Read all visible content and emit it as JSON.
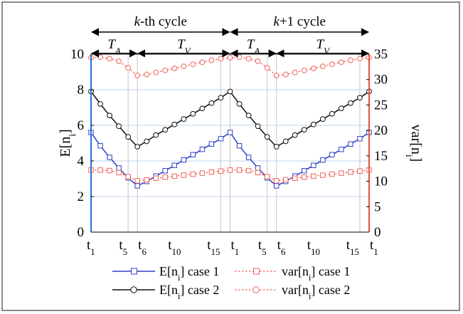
{
  "chart_data": {
    "type": "line",
    "x_tick_labels": [
      {
        "base": "t",
        "sub": "1"
      },
      {
        "base": "t",
        "sub": "5"
      },
      {
        "base": "t",
        "sub": "6"
      },
      {
        "base": "t",
        "sub": "10"
      },
      {
        "base": "t",
        "sub": "15"
      },
      {
        "base": "t",
        "sub": "1"
      },
      {
        "base": "t",
        "sub": "5"
      },
      {
        "base": "t",
        "sub": "6"
      },
      {
        "base": "t",
        "sub": "10"
      },
      {
        "base": "t",
        "sub": "15"
      },
      {
        "base": "t",
        "sub": "1"
      }
    ],
    "x_tick_positions": [
      1,
      5,
      6,
      10,
      15,
      16,
      20,
      21,
      25,
      30,
      31
    ],
    "x_range": [
      1,
      31
    ],
    "grid_x": [
      1,
      5,
      6,
      15,
      16,
      20,
      21,
      30,
      31
    ],
    "left_axis": {
      "label": "E[n",
      "label_sub": "i",
      "label_end": "]",
      "range": [
        0,
        10
      ],
      "ticks": [
        "0",
        "2",
        "4",
        "6",
        "8",
        "10"
      ],
      "color": "#2c6fd6"
    },
    "right_axis": {
      "label": "var[n",
      "label_sub": "i",
      "label_end": "]",
      "range": [
        0,
        35
      ],
      "ticks": [
        "0",
        "5",
        "10",
        "15",
        "20",
        "25",
        "30",
        "35"
      ],
      "color": "#e0553c"
    },
    "cycle_annotations": [
      {
        "italic": "k",
        "rest": "-th cycle",
        "from": 1,
        "to": 16
      },
      {
        "italic": "k",
        "rest": "+1 cycle",
        "from": 16,
        "to": 31
      }
    ],
    "phase_annotations": [
      {
        "base": "T",
        "sub": "A",
        "from": 1,
        "to": 6
      },
      {
        "base": "T",
        "sub": "V",
        "from": 6,
        "to": 16
      },
      {
        "base": "T",
        "sub": "A",
        "from": 16,
        "to": 21
      },
      {
        "base": "T",
        "sub": "V",
        "from": 21,
        "to": 31
      }
    ],
    "series": [
      {
        "name": "E[n",
        "name_sub": "i",
        "name_end": "] case 1",
        "axis": "left",
        "color": "#2e3fc4",
        "dash": false,
        "marker": "square",
        "values": [
          5.6,
          4.85,
          4.2,
          3.6,
          3.05,
          2.6,
          2.85,
          3.15,
          3.45,
          3.75,
          4.05,
          4.35,
          4.65,
          4.95,
          5.25,
          5.6,
          4.85,
          4.2,
          3.6,
          3.05,
          2.6,
          2.85,
          3.15,
          3.45,
          3.75,
          4.05,
          4.35,
          4.65,
          4.95,
          5.25,
          5.6
        ]
      },
      {
        "name": "E[n",
        "name_sub": "i",
        "name_end": "] case 2",
        "axis": "left",
        "color": "#111111",
        "dash": false,
        "marker": "circle",
        "values": [
          7.9,
          7.2,
          6.55,
          5.95,
          5.35,
          4.8,
          5.1,
          5.45,
          5.75,
          6.05,
          6.35,
          6.65,
          6.95,
          7.25,
          7.55,
          7.9,
          7.2,
          6.55,
          5.95,
          5.35,
          4.8,
          5.1,
          5.45,
          5.75,
          6.05,
          6.35,
          6.65,
          6.95,
          7.25,
          7.55,
          7.9
        ]
      },
      {
        "name": "var[n",
        "name_sub": "i",
        "name_end": "] case 1",
        "axis": "right",
        "color": "#f0625a",
        "dash": true,
        "marker": "square",
        "values": [
          12.2,
          12.2,
          12.1,
          11.7,
          10.9,
          10.1,
          10.3,
          10.6,
          10.8,
          11.0,
          11.2,
          11.4,
          11.6,
          11.8,
          12.0,
          12.2,
          12.2,
          12.1,
          11.7,
          10.9,
          10.1,
          10.3,
          10.6,
          10.8,
          11.0,
          11.2,
          11.4,
          11.6,
          11.8,
          12.0,
          12.2
        ]
      },
      {
        "name": "var[n",
        "name_sub": "i",
        "name_end": "] case 2",
        "axis": "right",
        "color": "#f0625a",
        "dash": true,
        "marker": "circle",
        "values": [
          34.3,
          34.4,
          34.1,
          33.6,
          32.3,
          30.8,
          31.0,
          31.4,
          31.8,
          32.2,
          32.6,
          33.0,
          33.4,
          33.8,
          34.1,
          34.3,
          34.4,
          34.1,
          33.6,
          32.3,
          30.8,
          31.0,
          31.4,
          31.8,
          32.2,
          32.6,
          33.0,
          33.4,
          33.8,
          34.1,
          34.3
        ]
      }
    ],
    "legend_position": "bottom"
  }
}
